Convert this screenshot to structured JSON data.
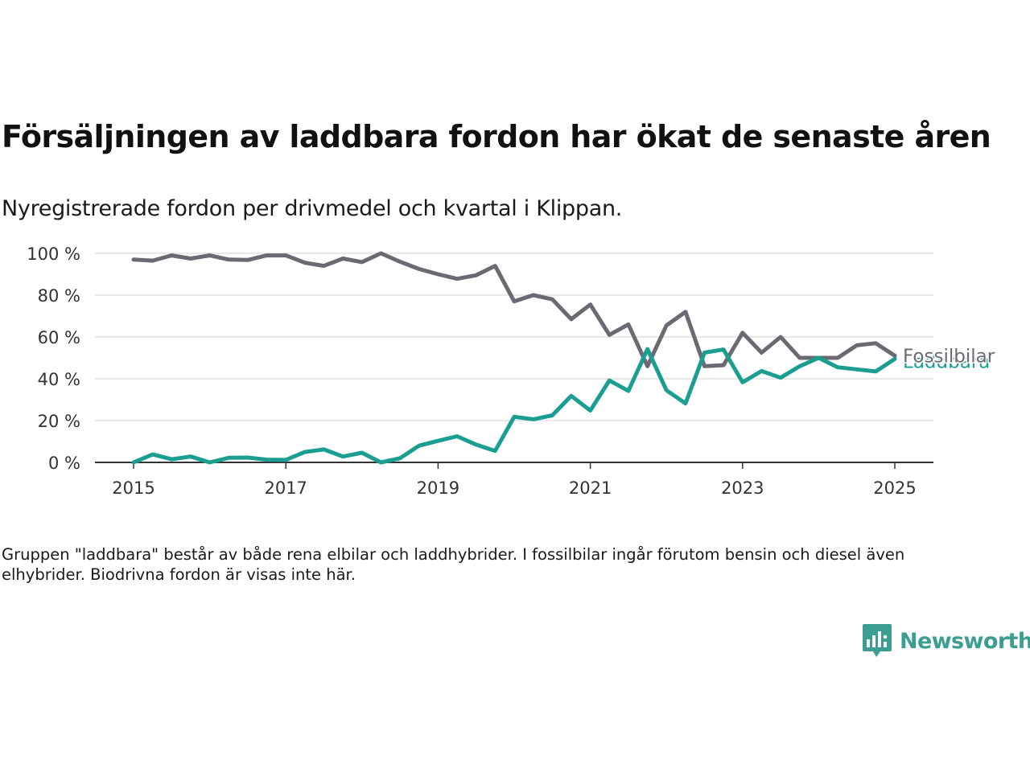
{
  "header": {
    "title": "Försäljningen av laddbara fordon har ökat de senaste åren",
    "subtitle": "Nyregistrerade fordon per drivmedel och kvartal i Klippan."
  },
  "footnote": "Gruppen \"laddbara\" består av både rena elbilar och laddhybrider. I fossilbilar ingår förutom bensin och diesel även elhybrider. Biodrivna fordon är visas inte här.",
  "logo": {
    "text": "Newsworthy",
    "color": "#3c9d91"
  },
  "chart_data": {
    "type": "line",
    "title": "Försäljningen av laddbara fordon har ökat de senaste åren",
    "subtitle": "Nyregistrerade fordon per drivmedel och kvartal i Klippan.",
    "xlabel": "",
    "ylabel": "",
    "xlim": [
      2014.7,
      2025.5
    ],
    "ylim": [
      0,
      100
    ],
    "y_ticks": [
      0,
      20,
      40,
      60,
      80,
      100
    ],
    "y_tick_labels": [
      "0 %",
      "20 %",
      "40 %",
      "60 %",
      "80 %",
      "100 %"
    ],
    "x_ticks": [
      2015,
      2017,
      2019,
      2021,
      2023,
      2025
    ],
    "x_tick_labels": [
      "2015",
      "2017",
      "2019",
      "2021",
      "2023",
      "2025"
    ],
    "grid": "horizontal",
    "legend": "direct labels at line ends",
    "series": [
      {
        "name": "Fossilbilar",
        "color": "#6b6a72",
        "x": [
          2015.0,
          2015.25,
          2015.5,
          2015.75,
          2016.0,
          2016.25,
          2016.5,
          2016.75,
          2017.0,
          2017.25,
          2017.5,
          2017.75,
          2018.0,
          2018.25,
          2018.5,
          2018.75,
          2019.0,
          2019.25,
          2019.5,
          2019.75,
          2020.0,
          2020.25,
          2020.5,
          2020.75,
          2021.0,
          2021.25,
          2021.5,
          2021.75,
          2022.0,
          2022.25,
          2022.5,
          2022.75,
          2023.0,
          2023.25,
          2023.5,
          2023.75,
          2024.0,
          2024.25,
          2024.5,
          2024.75,
          2025.0
        ],
        "values": [
          97,
          96.5,
          99,
          97.5,
          99,
          97,
          96.8,
          99,
          99,
          95.5,
          94,
          97.5,
          95.8,
          100,
          96,
          92.5,
          90,
          87.8,
          89.5,
          94,
          77,
          80,
          78,
          68.5,
          75.5,
          61,
          66,
          46,
          65.5,
          72,
          46,
          46.5,
          62,
          52.5,
          60,
          50,
          50,
          50,
          56,
          57,
          51
        ]
      },
      {
        "name": "Laddbara",
        "color": "#1a9e92",
        "x": [
          2015.0,
          2015.25,
          2015.5,
          2015.75,
          2016.0,
          2016.25,
          2016.5,
          2016.75,
          2017.0,
          2017.25,
          2017.5,
          2017.75,
          2018.0,
          2018.25,
          2018.5,
          2018.75,
          2019.0,
          2019.25,
          2019.5,
          2019.75,
          2020.0,
          2020.25,
          2020.5,
          2020.75,
          2021.0,
          2021.25,
          2021.5,
          2021.75,
          2022.0,
          2022.25,
          2022.5,
          2022.75,
          2023.0,
          2023.25,
          2023.5,
          2023.75,
          2024.0,
          2024.25,
          2024.5,
          2024.75,
          2025.0
        ],
        "values": [
          0,
          3.8,
          1.5,
          2.8,
          0,
          2.2,
          2.3,
          1.3,
          1.2,
          5,
          6.2,
          2.8,
          4.6,
          0,
          2,
          8,
          10.3,
          12.5,
          8.5,
          5.5,
          21.8,
          20.6,
          22.5,
          31.8,
          24.8,
          39.2,
          34.2,
          54.2,
          34.5,
          28.2,
          52.5,
          54,
          38.3,
          43.7,
          40.5,
          46,
          50,
          45.5,
          44.5,
          43.5,
          49.5
        ]
      }
    ]
  }
}
